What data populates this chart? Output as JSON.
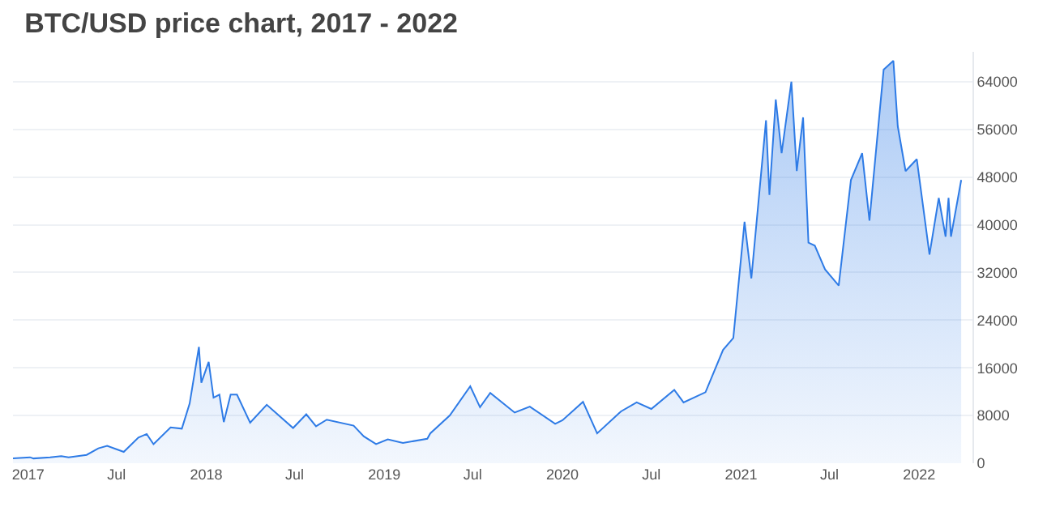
{
  "chart_data": {
    "type": "area",
    "title": "BTC/USD price chart, 2017 - 2022",
    "x": [
      "2016-12-01",
      "2017-01-05",
      "2017-01-12",
      "2017-02-15",
      "2017-03-10",
      "2017-03-25",
      "2017-05-01",
      "2017-05-25",
      "2017-06-12",
      "2017-07-16",
      "2017-08-15",
      "2017-09-01",
      "2017-09-15",
      "2017-10-20",
      "2017-11-12",
      "2017-11-28",
      "2017-12-17",
      "2017-12-22",
      "2018-01-06",
      "2018-01-16",
      "2018-01-28",
      "2018-02-06",
      "2018-02-20",
      "2018-03-05",
      "2018-04-01",
      "2018-05-05",
      "2018-06-28",
      "2018-07-25",
      "2018-08-14",
      "2018-09-05",
      "2018-10-30",
      "2018-11-20",
      "2018-12-15",
      "2019-01-08",
      "2019-02-08",
      "2019-03-30",
      "2019-04-05",
      "2019-05-15",
      "2019-06-26",
      "2019-07-16",
      "2019-08-06",
      "2019-09-25",
      "2019-10-26",
      "2019-12-17",
      "2020-01-01",
      "2020-02-12",
      "2020-03-12",
      "2020-04-30",
      "2020-06-01",
      "2020-07-01",
      "2020-08-17",
      "2020-09-05",
      "2020-10-20",
      "2020-11-25",
      "2020-12-16",
      "2021-01-08",
      "2021-01-22",
      "2021-02-08",
      "2021-02-21",
      "2021-02-28",
      "2021-03-13",
      "2021-03-25",
      "2021-04-14",
      "2021-04-25",
      "2021-05-08",
      "2021-05-19",
      "2021-06-01",
      "2021-06-22",
      "2021-07-20",
      "2021-08-14",
      "2021-09-06",
      "2021-09-21",
      "2021-10-20",
      "2021-11-09",
      "2021-11-18",
      "2021-12-04",
      "2021-12-27",
      "2022-01-22",
      "2022-02-10",
      "2022-02-24",
      "2022-03-02",
      "2022-03-07",
      "2022-03-28"
    ],
    "series": [
      {
        "color": "#2e7be6",
        "values": [
          800,
          1000,
          800,
          1000,
          1200,
          1000,
          1400,
          2500,
          2900,
          1900,
          4300,
          4900,
          3200,
          6000,
          5800,
          10000,
          19500,
          13500,
          17000,
          11000,
          11500,
          6900,
          11500,
          11500,
          6800,
          9800,
          5900,
          8200,
          6200,
          7300,
          6300,
          4500,
          3200,
          4000,
          3400,
          4100,
          5000,
          8000,
          12900,
          9400,
          11800,
          8500,
          9500,
          6600,
          7200,
          10300,
          5000,
          8700,
          10200,
          9100,
          12300,
          10200,
          11900,
          19000,
          21000,
          40500,
          31000,
          46000,
          57500,
          45000,
          61000,
          52000,
          64000,
          49000,
          58000,
          37000,
          36500,
          32500,
          29800,
          47500,
          52000,
          40700,
          66000,
          67500,
          56500,
          49000,
          51000,
          35000,
          44500,
          38000,
          44500,
          38000,
          47500
        ]
      }
    ],
    "xlim": [
      "2016-12-01",
      "2022-04-20"
    ],
    "xticks": [
      {
        "value": "2017-01-01",
        "label": "2017"
      },
      {
        "value": "2017-07-01",
        "label": "Jul"
      },
      {
        "value": "2018-01-01",
        "label": "2018"
      },
      {
        "value": "2018-07-01",
        "label": "Jul"
      },
      {
        "value": "2019-01-01",
        "label": "2019"
      },
      {
        "value": "2019-07-01",
        "label": "Jul"
      },
      {
        "value": "2020-01-01",
        "label": "2020"
      },
      {
        "value": "2020-07-01",
        "label": "Jul"
      },
      {
        "value": "2021-01-01",
        "label": "2021"
      },
      {
        "value": "2021-07-01",
        "label": "Jul"
      },
      {
        "value": "2022-01-01",
        "label": "2022"
      }
    ],
    "ylim": [
      0,
      69000
    ],
    "yticks": [
      0,
      8000,
      16000,
      24000,
      32000,
      40000,
      48000,
      56000,
      64000
    ],
    "grid": "y",
    "marker": "none",
    "line_style": "solid"
  }
}
